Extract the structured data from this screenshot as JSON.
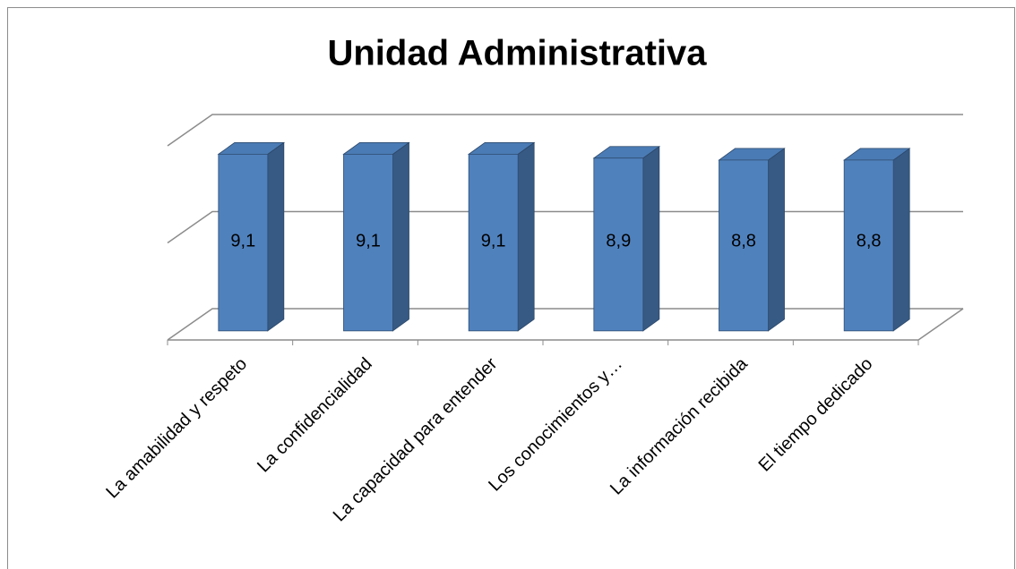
{
  "chart_data": {
    "type": "bar3d",
    "title": "Unidad Administrativa",
    "categories": [
      "La amabilidad y respeto",
      "La confidencialidad",
      "La capacidad para entender",
      "Los conocimientos y…",
      "La información recibida",
      "El tiempo dedicado"
    ],
    "values": [
      9.1,
      9.1,
      9.1,
      8.9,
      8.8,
      8.8
    ],
    "value_labels": [
      "9,1",
      "9,1",
      "9,1",
      "8,9",
      "8,8",
      "8,8"
    ],
    "color": "#4f81bd",
    "ylim": [
      0,
      10
    ],
    "yticks": [
      0,
      5,
      10
    ],
    "grid": true
  }
}
